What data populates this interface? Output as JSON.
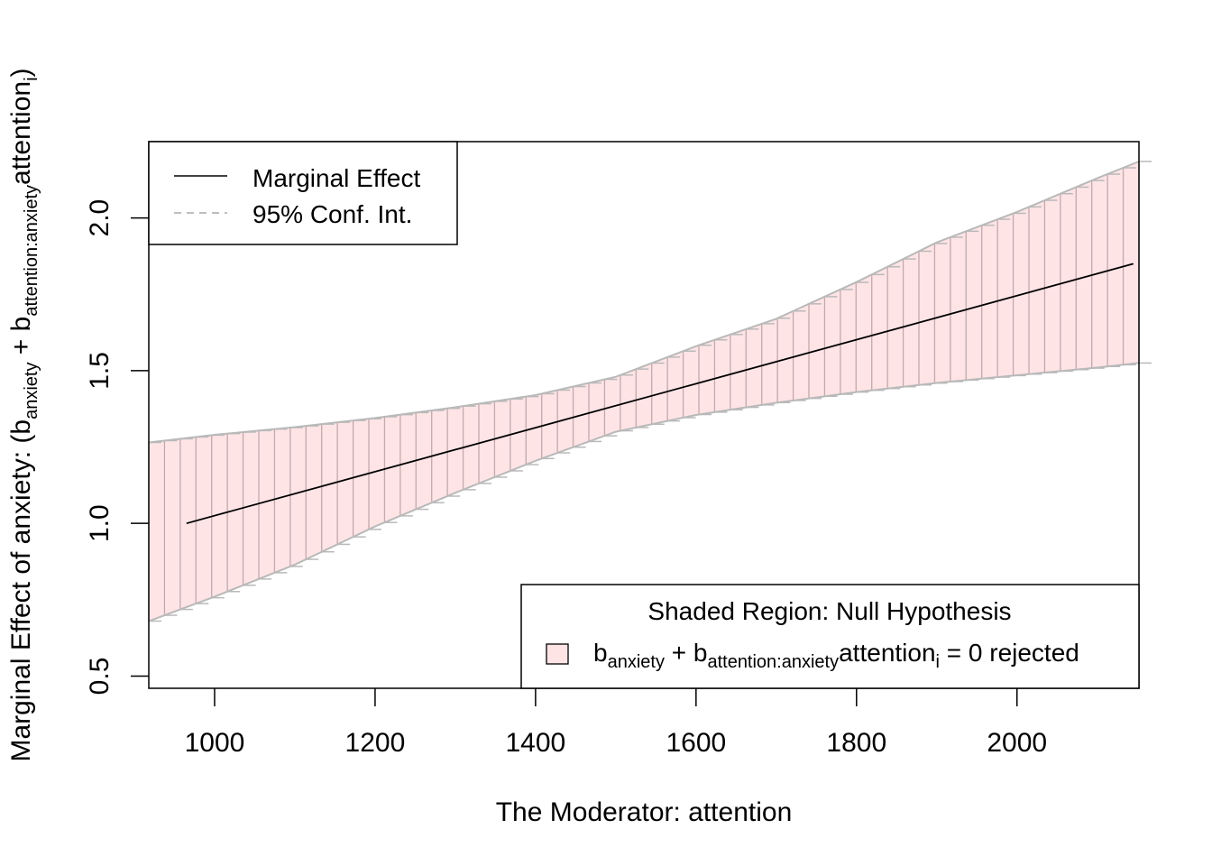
{
  "chart_data": {
    "type": "line",
    "xlabel": "The Moderator:  attention",
    "ylabel": {
      "prefix": "Marginal Effect of  anxiety:   (",
      "b1": "b",
      "sub1": "anxiety",
      "plus": " + ",
      "b2": "b",
      "sub2": "attention:anxiety",
      "var": "attention",
      "subi": "i",
      "close": ")"
    },
    "xlim": [
      918,
      2152
    ],
    "ylim": [
      0.46,
      2.25
    ],
    "x_ticks": [
      1000,
      1200,
      1400,
      1600,
      1800,
      2000
    ],
    "x_tick_labels": [
      "1000",
      "1200",
      "1400",
      "1600",
      "1800",
      "2000"
    ],
    "y_ticks": [
      0.5,
      1.0,
      1.5,
      2.0
    ],
    "y_tick_labels": [
      "0.5",
      "1.0",
      "1.5",
      "2.0"
    ],
    "series": [
      {
        "name": "Marginal Effect",
        "style": "solid",
        "x": [
          965,
          2145
        ],
        "y": [
          1.0,
          1.85
        ]
      },
      {
        "name": "95% Conf. Int.",
        "style": "dashed",
        "x": [
          918,
          1000,
          1100,
          1200,
          1300,
          1400,
          1500,
          1600,
          1700,
          1800,
          1900,
          2000,
          2100,
          2152
        ],
        "upper": [
          1.265,
          1.29,
          1.315,
          1.345,
          1.38,
          1.42,
          1.48,
          1.58,
          1.67,
          1.79,
          1.92,
          2.02,
          2.13,
          2.185
        ],
        "lower": [
          0.68,
          0.76,
          0.865,
          0.99,
          1.1,
          1.205,
          1.3,
          1.355,
          1.395,
          1.43,
          1.46,
          1.485,
          1.51,
          1.525
        ]
      }
    ],
    "colors": {
      "band_fill": "#ffe4e6",
      "band_lines": "#c2a9ab",
      "ci_line": "#b9b9b9",
      "effect_line": "#000000"
    },
    "legend_top": {
      "position": "top-left",
      "entries": [
        "Marginal Effect",
        "95% Conf. Int."
      ]
    },
    "legend_bottom": {
      "position": "bottom-right",
      "title": "Shaded Region: Null Hypothesis",
      "b1": "b",
      "sub1": "anxiety",
      "plus": " + ",
      "b2": "b",
      "sub2": "attention:anxiety",
      "var": "attention",
      "subi": "i",
      "eq": " = 0  rejected"
    }
  }
}
